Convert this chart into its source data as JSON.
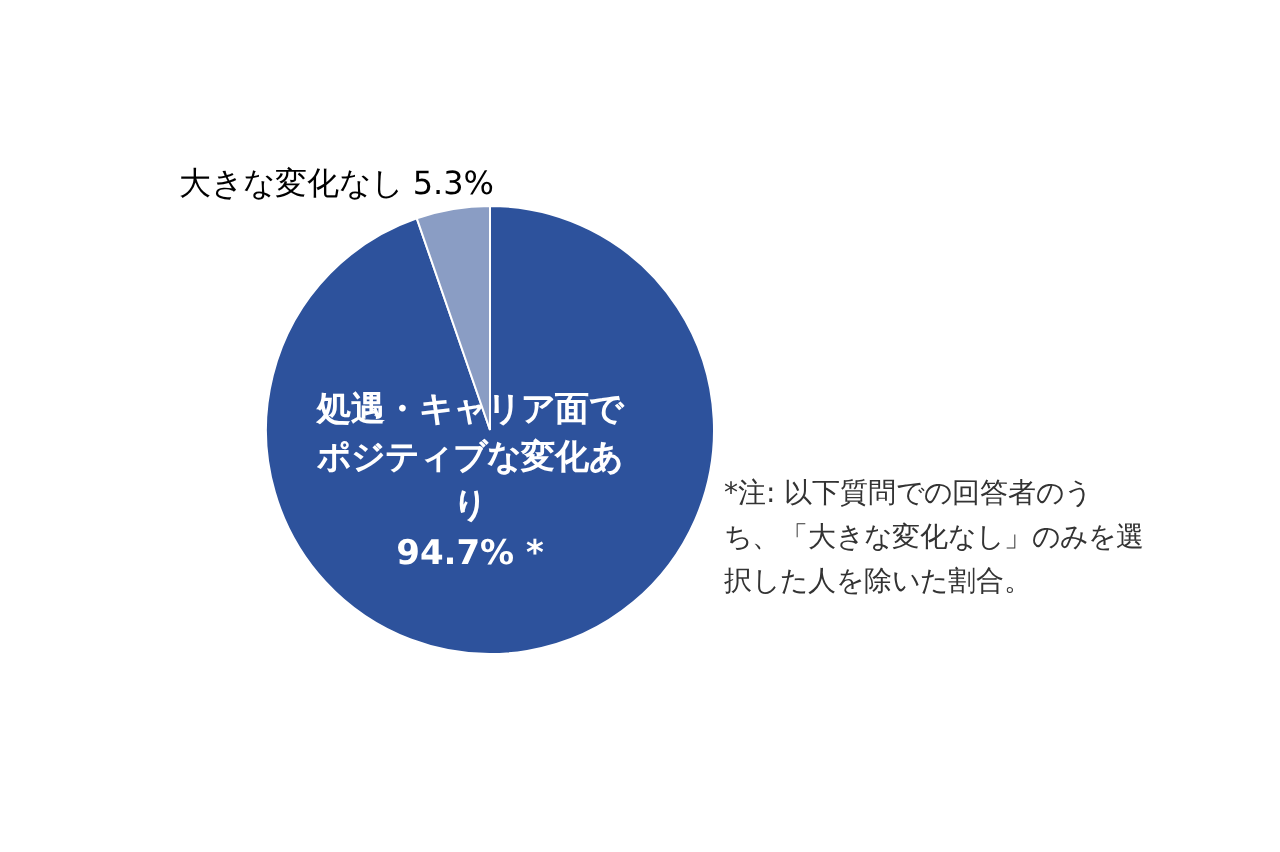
{
  "chart_data": {
    "type": "pie",
    "categories": [
      "処遇・キャリア面でポジティブな変化あり",
      "大きな変化なし"
    ],
    "values": [
      94.7,
      5.3
    ],
    "value_labels": [
      "94.7%  *",
      "5.3%"
    ],
    "colors": [
      "#2d529c",
      "#8a9dc4"
    ],
    "annotations": [
      "*注: 以下質問での回答者のうち、「大きな変化なし」のみを選択した人を除いた割合。"
    ]
  }
}
